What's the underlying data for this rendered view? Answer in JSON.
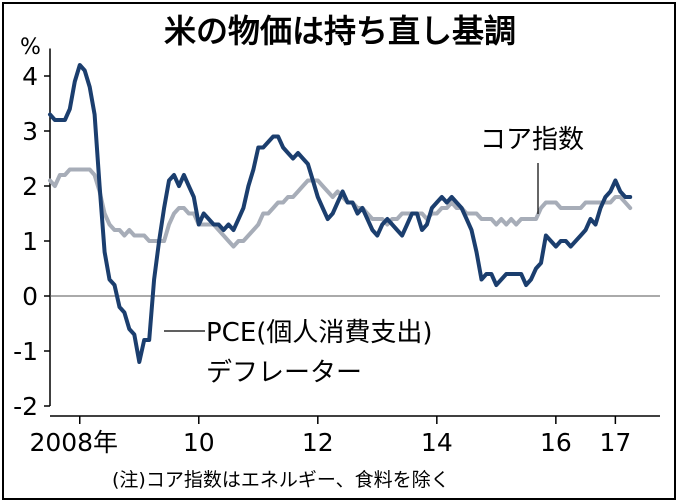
{
  "chart_data": {
    "type": "line",
    "title": "米の物価は持ち直し基調",
    "ylabel": "%",
    "ylim": [
      -2,
      4.5
    ],
    "yticks": [
      4,
      3,
      2,
      1,
      0,
      -1,
      -2
    ],
    "ytick_labels": [
      "4",
      "3",
      "2",
      "1",
      "0",
      "-1",
      "-2"
    ],
    "xlim": [
      2007.5,
      2017.75
    ],
    "xticks": [
      2008,
      2010,
      2012,
      2014,
      2016,
      2017
    ],
    "xtick_labels": [
      "2008年",
      "10",
      "12",
      "14",
      "16",
      "17"
    ],
    "zero_line": true,
    "note": "(注)コア指数はエネルギー、食料を除く",
    "series": [
      {
        "name": "コア指数",
        "label": "コア指数",
        "color": "#a7adb8",
        "x": [
          2007.5,
          2007.583,
          2007.667,
          2007.75,
          2007.833,
          2007.917,
          2008.0,
          2008.083,
          2008.167,
          2008.25,
          2008.333,
          2008.417,
          2008.5,
          2008.583,
          2008.667,
          2008.75,
          2008.833,
          2008.917,
          2009.0,
          2009.083,
          2009.167,
          2009.25,
          2009.333,
          2009.417,
          2009.5,
          2009.583,
          2009.667,
          2009.75,
          2009.833,
          2009.917,
          2010.0,
          2010.083,
          2010.167,
          2010.25,
          2010.333,
          2010.417,
          2010.5,
          2010.583,
          2010.667,
          2010.75,
          2010.833,
          2010.917,
          2011.0,
          2011.083,
          2011.167,
          2011.25,
          2011.333,
          2011.417,
          2011.5,
          2011.583,
          2011.667,
          2011.75,
          2011.833,
          2011.917,
          2012.0,
          2012.083,
          2012.167,
          2012.25,
          2012.333,
          2012.417,
          2012.5,
          2012.583,
          2012.667,
          2012.75,
          2012.833,
          2012.917,
          2013.0,
          2013.083,
          2013.167,
          2013.25,
          2013.333,
          2013.417,
          2013.5,
          2013.583,
          2013.667,
          2013.75,
          2013.833,
          2013.917,
          2014.0,
          2014.083,
          2014.167,
          2014.25,
          2014.333,
          2014.417,
          2014.5,
          2014.583,
          2014.667,
          2014.75,
          2014.833,
          2014.917,
          2015.0,
          2015.083,
          2015.167,
          2015.25,
          2015.333,
          2015.417,
          2015.5,
          2015.583,
          2015.667,
          2015.75,
          2015.833,
          2015.917,
          2016.0,
          2016.083,
          2016.167,
          2016.25,
          2016.333,
          2016.417,
          2016.5,
          2016.583,
          2016.667,
          2016.75,
          2016.833,
          2016.917,
          2017.0,
          2017.083,
          2017.167,
          2017.25
        ],
        "values": [
          2.1,
          2.0,
          2.2,
          2.2,
          2.3,
          2.3,
          2.3,
          2.3,
          2.3,
          2.2,
          1.9,
          1.5,
          1.3,
          1.2,
          1.2,
          1.1,
          1.2,
          1.1,
          1.1,
          1.1,
          1.0,
          1.0,
          1.0,
          1.0,
          1.3,
          1.5,
          1.6,
          1.6,
          1.5,
          1.5,
          1.3,
          1.3,
          1.3,
          1.3,
          1.2,
          1.1,
          1.0,
          0.9,
          1.0,
          1.0,
          1.1,
          1.2,
          1.3,
          1.5,
          1.5,
          1.6,
          1.7,
          1.7,
          1.8,
          1.8,
          1.9,
          2.0,
          2.1,
          2.1,
          2.1,
          2.0,
          1.9,
          1.8,
          1.9,
          1.8,
          1.7,
          1.7,
          1.6,
          1.6,
          1.5,
          1.4,
          1.4,
          1.4,
          1.3,
          1.4,
          1.4,
          1.5,
          1.5,
          1.5,
          1.5,
          1.5,
          1.4,
          1.5,
          1.5,
          1.6,
          1.6,
          1.7,
          1.6,
          1.6,
          1.5,
          1.5,
          1.5,
          1.4,
          1.4,
          1.4,
          1.3,
          1.4,
          1.3,
          1.4,
          1.3,
          1.4,
          1.4,
          1.4,
          1.4,
          1.6,
          1.7,
          1.7,
          1.7,
          1.6,
          1.6,
          1.6,
          1.6,
          1.6,
          1.7,
          1.7,
          1.7,
          1.7,
          1.7,
          1.7,
          1.8,
          1.8,
          1.7,
          1.6
        ]
      },
      {
        "name": "PCE(個人消費支出)デフレーター",
        "label_line1": "PCE(個人消費支出)",
        "label_line2": "デフレーター",
        "color": "#1b3e6e",
        "x": [
          2007.5,
          2007.583,
          2007.667,
          2007.75,
          2007.833,
          2007.917,
          2008.0,
          2008.083,
          2008.167,
          2008.25,
          2008.333,
          2008.417,
          2008.5,
          2008.583,
          2008.667,
          2008.75,
          2008.833,
          2008.917,
          2009.0,
          2009.083,
          2009.167,
          2009.25,
          2009.333,
          2009.417,
          2009.5,
          2009.583,
          2009.667,
          2009.75,
          2009.833,
          2009.917,
          2010.0,
          2010.083,
          2010.167,
          2010.25,
          2010.333,
          2010.417,
          2010.5,
          2010.583,
          2010.667,
          2010.75,
          2010.833,
          2010.917,
          2011.0,
          2011.083,
          2011.167,
          2011.25,
          2011.333,
          2011.417,
          2011.5,
          2011.583,
          2011.667,
          2011.75,
          2011.833,
          2011.917,
          2012.0,
          2012.083,
          2012.167,
          2012.25,
          2012.333,
          2012.417,
          2012.5,
          2012.583,
          2012.667,
          2012.75,
          2012.833,
          2012.917,
          2013.0,
          2013.083,
          2013.167,
          2013.25,
          2013.333,
          2013.417,
          2013.5,
          2013.583,
          2013.667,
          2013.75,
          2013.833,
          2013.917,
          2014.0,
          2014.083,
          2014.167,
          2014.25,
          2014.333,
          2014.417,
          2014.5,
          2014.583,
          2014.667,
          2014.75,
          2014.833,
          2014.917,
          2015.0,
          2015.083,
          2015.167,
          2015.25,
          2015.333,
          2015.417,
          2015.5,
          2015.583,
          2015.667,
          2015.75,
          2015.833,
          2015.917,
          2016.0,
          2016.083,
          2016.167,
          2016.25,
          2016.333,
          2016.417,
          2016.5,
          2016.583,
          2016.667,
          2016.75,
          2016.833,
          2016.917,
          2017.0,
          2017.083,
          2017.167,
          2017.25
        ],
        "values": [
          3.3,
          3.2,
          3.2,
          3.2,
          3.4,
          3.9,
          4.2,
          4.1,
          3.8,
          3.3,
          2.0,
          0.8,
          0.3,
          0.2,
          -0.2,
          -0.3,
          -0.6,
          -0.7,
          -1.2,
          -0.8,
          -0.8,
          0.3,
          1.0,
          1.6,
          2.1,
          2.2,
          2.0,
          2.2,
          2.0,
          1.8,
          1.3,
          1.5,
          1.4,
          1.3,
          1.3,
          1.2,
          1.3,
          1.2,
          1.4,
          1.6,
          2.0,
          2.3,
          2.7,
          2.7,
          2.8,
          2.9,
          2.9,
          2.7,
          2.6,
          2.5,
          2.6,
          2.5,
          2.4,
          2.1,
          1.8,
          1.6,
          1.4,
          1.5,
          1.7,
          1.9,
          1.7,
          1.7,
          1.5,
          1.6,
          1.4,
          1.2,
          1.1,
          1.3,
          1.4,
          1.3,
          1.2,
          1.1,
          1.3,
          1.5,
          1.5,
          1.2,
          1.3,
          1.6,
          1.7,
          1.8,
          1.7,
          1.8,
          1.7,
          1.6,
          1.4,
          1.2,
          0.8,
          0.3,
          0.4,
          0.4,
          0.2,
          0.3,
          0.4,
          0.4,
          0.4,
          0.4,
          0.2,
          0.3,
          0.5,
          0.6,
          1.1,
          1.0,
          0.9,
          1.0,
          1.0,
          0.9,
          1.0,
          1.1,
          1.2,
          1.4,
          1.3,
          1.6,
          1.8,
          1.9,
          2.1,
          1.9,
          1.8,
          1.8
        ]
      }
    ]
  }
}
